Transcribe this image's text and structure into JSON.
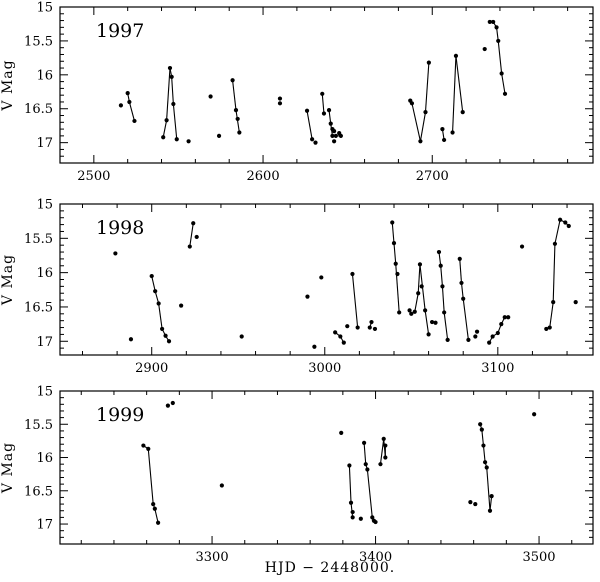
{
  "chart_data": {
    "type": "scatter",
    "xlabel": "HJD − 2448000.",
    "ylabel": "V Mag",
    "panels": [
      {
        "label": "1997",
        "xlim": [
          2480,
          2795
        ],
        "ylim": [
          17.3,
          15.0
        ],
        "xticks": [
          2500,
          2600,
          2700
        ],
        "yticks": [
          15,
          15.5,
          16,
          16.5,
          17
        ],
        "points": [
          [
            2516,
            16.45
          ],
          [
            2520,
            16.27
          ],
          [
            2521,
            16.4
          ],
          [
            2524,
            16.68
          ],
          [
            2541,
            16.92
          ],
          [
            2543,
            16.67
          ],
          [
            2545,
            15.9
          ],
          [
            2546,
            16.03
          ],
          [
            2547,
            16.43
          ],
          [
            2549,
            16.95
          ],
          [
            2556,
            16.98
          ],
          [
            2569,
            16.32
          ],
          [
            2574,
            16.9
          ],
          [
            2582,
            16.08
          ],
          [
            2584,
            16.52
          ],
          [
            2585,
            16.65
          ],
          [
            2586,
            16.85
          ],
          [
            2610,
            16.35
          ],
          [
            2610,
            16.42
          ],
          [
            2626,
            16.53
          ],
          [
            2629,
            16.95
          ],
          [
            2631,
            17.0
          ],
          [
            2635,
            16.28
          ],
          [
            2636,
            16.57
          ],
          [
            2639,
            16.52
          ],
          [
            2640,
            16.72
          ],
          [
            2641,
            16.8
          ],
          [
            2641,
            16.9
          ],
          [
            2642,
            16.83
          ],
          [
            2642,
            16.98
          ],
          [
            2643,
            16.9
          ],
          [
            2645,
            16.86
          ],
          [
            2646,
            16.9
          ],
          [
            2687,
            16.38
          ],
          [
            2688,
            16.42
          ],
          [
            2693,
            16.98
          ],
          [
            2696,
            16.55
          ],
          [
            2698,
            15.82
          ],
          [
            2706,
            16.8
          ],
          [
            2707,
            16.96
          ],
          [
            2712,
            16.85
          ],
          [
            2714,
            15.72
          ],
          [
            2718,
            16.55
          ],
          [
            2731,
            15.62
          ],
          [
            2734,
            15.22
          ],
          [
            2736,
            15.22
          ],
          [
            2738,
            15.3
          ],
          [
            2739,
            15.5
          ],
          [
            2741,
            15.98
          ],
          [
            2743,
            16.28
          ]
        ],
        "segments": [
          [
            2520,
            16.27,
            2521,
            16.4
          ],
          [
            2521,
            16.4,
            2524,
            16.68
          ],
          [
            2541,
            16.92,
            2543,
            16.67
          ],
          [
            2543,
            16.67,
            2545,
            15.9
          ],
          [
            2545,
            15.9,
            2546,
            16.03
          ],
          [
            2546,
            16.03,
            2547,
            16.43
          ],
          [
            2547,
            16.43,
            2549,
            16.95
          ],
          [
            2582,
            16.08,
            2584,
            16.52
          ],
          [
            2584,
            16.52,
            2586,
            16.85
          ],
          [
            2626,
            16.53,
            2629,
            16.95
          ],
          [
            2635,
            16.28,
            2636,
            16.57
          ],
          [
            2639,
            16.52,
            2640,
            16.72
          ],
          [
            2640,
            16.72,
            2641,
            16.9
          ],
          [
            2641,
            16.9,
            2643,
            16.9
          ],
          [
            2643,
            16.9,
            2646,
            16.9
          ],
          [
            2688,
            16.42,
            2693,
            16.98
          ],
          [
            2693,
            16.98,
            2696,
            16.55
          ],
          [
            2696,
            16.55,
            2698,
            15.82
          ],
          [
            2706,
            16.8,
            2707,
            16.96
          ],
          [
            2712,
            16.85,
            2714,
            15.72
          ],
          [
            2714,
            15.72,
            2718,
            16.55
          ],
          [
            2734,
            15.22,
            2736,
            15.22
          ],
          [
            2736,
            15.22,
            2738,
            15.3
          ],
          [
            2738,
            15.3,
            2739,
            15.5
          ],
          [
            2739,
            15.5,
            2741,
            15.98
          ],
          [
            2741,
            15.98,
            2743,
            16.28
          ]
        ]
      },
      {
        "label": "1998",
        "xlim": [
          2847,
          3155
        ],
        "ylim": [
          17.2,
          15.0
        ],
        "xticks": [
          2900,
          3000,
          3100
        ],
        "yticks": [
          15,
          15.5,
          16,
          16.5,
          17
        ],
        "points": [
          [
            2879,
            15.72
          ],
          [
            2888,
            16.97
          ],
          [
            2900,
            16.05
          ],
          [
            2902,
            16.27
          ],
          [
            2904,
            16.45
          ],
          [
            2906,
            16.82
          ],
          [
            2908,
            16.92
          ],
          [
            2910,
            17.0
          ],
          [
            2917,
            16.48
          ],
          [
            2922,
            15.62
          ],
          [
            2924,
            15.28
          ],
          [
            2926,
            15.48
          ],
          [
            2952,
            16.93
          ],
          [
            2990,
            16.35
          ],
          [
            2994,
            17.08
          ],
          [
            2998,
            16.07
          ],
          [
            3006,
            16.87
          ],
          [
            3009,
            16.93
          ],
          [
            3011,
            17.02
          ],
          [
            3013,
            16.78
          ],
          [
            3016,
            16.02
          ],
          [
            3019,
            16.8
          ],
          [
            3026,
            16.8
          ],
          [
            3027,
            16.72
          ],
          [
            3029,
            16.82
          ],
          [
            3039,
            15.27
          ],
          [
            3040,
            15.57
          ],
          [
            3041,
            15.87
          ],
          [
            3042,
            16.02
          ],
          [
            3043,
            16.58
          ],
          [
            3049,
            16.55
          ],
          [
            3050,
            16.6
          ],
          [
            3052,
            16.57
          ],
          [
            3054,
            16.3
          ],
          [
            3055,
            15.88
          ],
          [
            3056,
            16.2
          ],
          [
            3058,
            16.55
          ],
          [
            3060,
            16.9
          ],
          [
            3062,
            16.72
          ],
          [
            3064,
            16.73
          ],
          [
            3066,
            15.7
          ],
          [
            3067,
            15.9
          ],
          [
            3068,
            16.2
          ],
          [
            3069,
            16.58
          ],
          [
            3071,
            16.98
          ],
          [
            3078,
            15.8
          ],
          [
            3079,
            16.15
          ],
          [
            3080,
            16.38
          ],
          [
            3083,
            16.98
          ],
          [
            3087,
            16.93
          ],
          [
            3088,
            16.86
          ],
          [
            3095,
            17.02
          ],
          [
            3097,
            16.93
          ],
          [
            3100,
            16.88
          ],
          [
            3102,
            16.75
          ],
          [
            3104,
            16.65
          ],
          [
            3106,
            16.65
          ],
          [
            3114,
            15.62
          ],
          [
            3128,
            16.82
          ],
          [
            3130,
            16.8
          ],
          [
            3132,
            16.43
          ],
          [
            3133,
            15.58
          ],
          [
            3136,
            15.23
          ],
          [
            3139,
            15.27
          ],
          [
            3141,
            15.32
          ],
          [
            3145,
            16.43
          ]
        ],
        "segments": [
          [
            2900,
            16.05,
            2902,
            16.27
          ],
          [
            2902,
            16.27,
            2904,
            16.45
          ],
          [
            2904,
            16.45,
            2906,
            16.82
          ],
          [
            2906,
            16.82,
            2908,
            16.92
          ],
          [
            2908,
            16.92,
            2910,
            17.0
          ],
          [
            2922,
            15.62,
            2924,
            15.28
          ],
          [
            3006,
            16.87,
            3009,
            16.93
          ],
          [
            3009,
            16.93,
            3011,
            17.02
          ],
          [
            3016,
            16.02,
            3019,
            16.8
          ],
          [
            3026,
            16.8,
            3027,
            16.72
          ],
          [
            3039,
            15.27,
            3040,
            15.57
          ],
          [
            3040,
            15.57,
            3041,
            15.87
          ],
          [
            3041,
            15.87,
            3043,
            16.58
          ],
          [
            3049,
            16.55,
            3050,
            16.6
          ],
          [
            3050,
            16.6,
            3052,
            16.57
          ],
          [
            3052,
            16.57,
            3054,
            16.3
          ],
          [
            3054,
            16.3,
            3055,
            15.88
          ],
          [
            3055,
            15.88,
            3058,
            16.55
          ],
          [
            3058,
            16.55,
            3060,
            16.9
          ],
          [
            3062,
            16.72,
            3064,
            16.73
          ],
          [
            3066,
            15.7,
            3067,
            15.9
          ],
          [
            3067,
            15.9,
            3068,
            16.2
          ],
          [
            3068,
            16.2,
            3069,
            16.58
          ],
          [
            3069,
            16.58,
            3071,
            16.98
          ],
          [
            3078,
            15.8,
            3079,
            16.15
          ],
          [
            3079,
            16.15,
            3080,
            16.38
          ],
          [
            3080,
            16.38,
            3083,
            16.98
          ],
          [
            3095,
            17.02,
            3097,
            16.93
          ],
          [
            3097,
            16.93,
            3100,
            16.88
          ],
          [
            3100,
            16.88,
            3102,
            16.75
          ],
          [
            3102,
            16.75,
            3104,
            16.65
          ],
          [
            3104,
            16.65,
            3106,
            16.65
          ],
          [
            3128,
            16.82,
            3130,
            16.8
          ],
          [
            3130,
            16.8,
            3132,
            16.43
          ],
          [
            3132,
            16.43,
            3133,
            15.58
          ],
          [
            3133,
            15.58,
            3136,
            15.23
          ],
          [
            3136,
            15.23,
            3139,
            15.27
          ],
          [
            3139,
            15.27,
            3141,
            15.32
          ]
        ]
      },
      {
        "label": "1999",
        "xlim": [
          3207,
          3533
        ],
        "ylim": [
          17.3,
          15.0
        ],
        "xticks": [
          3300,
          3400,
          3500
        ],
        "yticks": [
          15,
          15.5,
          16,
          16.5,
          17
        ],
        "points": [
          [
            3258,
            15.82
          ],
          [
            3261,
            15.87
          ],
          [
            3264,
            16.7
          ],
          [
            3265,
            16.77
          ],
          [
            3267,
            16.98
          ],
          [
            3273,
            15.22
          ],
          [
            3276,
            15.18
          ],
          [
            3306,
            16.42
          ],
          [
            3379,
            15.63
          ],
          [
            3384,
            16.12
          ],
          [
            3385,
            16.68
          ],
          [
            3386,
            16.82
          ],
          [
            3386,
            16.9
          ],
          [
            3391,
            16.92
          ],
          [
            3393,
            15.78
          ],
          [
            3394,
            16.1
          ],
          [
            3395,
            16.18
          ],
          [
            3398,
            16.9
          ],
          [
            3399,
            16.95
          ],
          [
            3400,
            16.97
          ],
          [
            3403,
            16.1
          ],
          [
            3405,
            15.72
          ],
          [
            3406,
            16.0
          ],
          [
            3406,
            15.82
          ],
          [
            3458,
            16.67
          ],
          [
            3461,
            16.7
          ],
          [
            3464,
            15.5
          ],
          [
            3465,
            15.58
          ],
          [
            3466,
            15.82
          ],
          [
            3467,
            16.07
          ],
          [
            3468,
            16.15
          ],
          [
            3470,
            16.8
          ],
          [
            3471,
            16.58
          ],
          [
            3497,
            15.35
          ]
        ],
        "segments": [
          [
            3258,
            15.82,
            3261,
            15.87
          ],
          [
            3261,
            15.87,
            3264,
            16.7
          ],
          [
            3264,
            16.7,
            3265,
            16.77
          ],
          [
            3265,
            16.77,
            3267,
            16.98
          ],
          [
            3384,
            16.12,
            3385,
            16.68
          ],
          [
            3385,
            16.68,
            3386,
            16.9
          ],
          [
            3393,
            15.78,
            3394,
            16.1
          ],
          [
            3394,
            16.1,
            3395,
            16.18
          ],
          [
            3395,
            16.18,
            3398,
            16.9
          ],
          [
            3398,
            16.9,
            3400,
            16.97
          ],
          [
            3403,
            16.1,
            3405,
            15.72
          ],
          [
            3405,
            15.72,
            3406,
            16.0
          ],
          [
            3406,
            16.0,
            3406,
            15.82
          ],
          [
            3464,
            15.5,
            3465,
            15.58
          ],
          [
            3465,
            15.58,
            3466,
            15.82
          ],
          [
            3466,
            15.82,
            3467,
            16.07
          ],
          [
            3467,
            16.07,
            3468,
            16.15
          ],
          [
            3468,
            16.15,
            3470,
            16.8
          ],
          [
            3470,
            16.8,
            3471,
            16.58
          ]
        ]
      }
    ]
  }
}
